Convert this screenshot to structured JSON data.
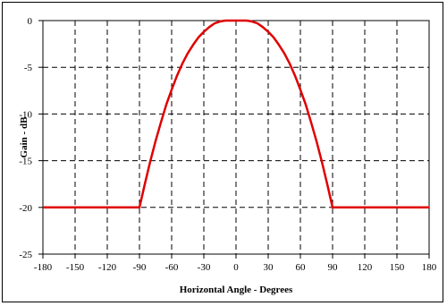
{
  "chart_data": {
    "type": "line",
    "title": "",
    "xlabel": "Horizontal Angle - Degrees",
    "ylabel": "Gain - dB",
    "xlim": [
      -180,
      180
    ],
    "ylim": [
      -25,
      0
    ],
    "xticks": [
      -180,
      -150,
      -120,
      -90,
      -60,
      -30,
      0,
      30,
      60,
      90,
      120,
      150,
      180
    ],
    "yticks": [
      0,
      -5,
      -10,
      -15,
      -20,
      -25
    ],
    "grid": true,
    "grid_style": "dashed",
    "legend": "none",
    "series": [
      {
        "color": "#e00000",
        "x": [
          -180,
          -150,
          -120,
          -90,
          -85,
          -80,
          -75,
          -70,
          -65,
          -60,
          -55,
          -50,
          -45,
          -40,
          -35,
          -30,
          -25,
          -20,
          -15,
          -10,
          -5,
          0,
          5,
          10,
          15,
          20,
          25,
          30,
          35,
          40,
          45,
          50,
          55,
          60,
          65,
          70,
          75,
          80,
          85,
          90,
          120,
          150,
          180
        ],
        "y": [
          -20,
          -20,
          -20,
          -20,
          -17.5,
          -15.1,
          -12.9,
          -10.9,
          -9.0,
          -7.4,
          -5.9,
          -4.6,
          -3.5,
          -2.6,
          -1.8,
          -1.2,
          -0.7,
          -0.3,
          -0.1,
          0,
          0,
          0,
          0,
          0,
          -0.1,
          -0.3,
          -0.7,
          -1.2,
          -1.8,
          -2.6,
          -3.5,
          -4.6,
          -5.9,
          -7.4,
          -9.0,
          -10.9,
          -12.9,
          -15.1,
          -17.5,
          -20,
          -20,
          -20,
          -20
        ]
      }
    ]
  }
}
